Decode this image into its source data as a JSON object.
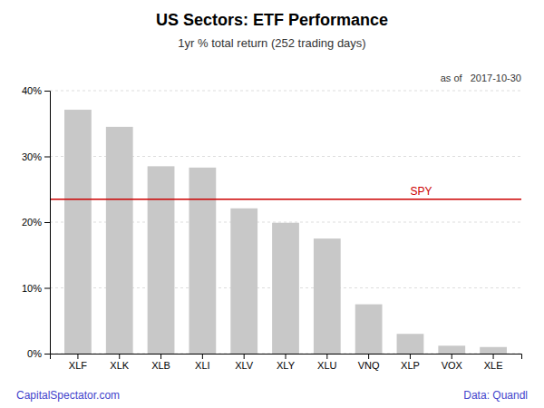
{
  "chart_data": {
    "type": "bar",
    "title": "US Sectors: ETF Performance",
    "subtitle": "1yr % total return (252 trading days)",
    "annotations": [
      "as of   2017-10-30",
      "CapitalSpectator.com",
      "Data: Quandl"
    ],
    "categories": [
      "XLF",
      "XLK",
      "XLB",
      "XLI",
      "XLV",
      "XLY",
      "XLU",
      "VNQ",
      "XLP",
      "VOX",
      "XLE"
    ],
    "values": [
      0.371,
      0.345,
      0.285,
      0.283,
      0.221,
      0.199,
      0.175,
      0.075,
      0.03,
      0.012,
      0.01
    ],
    "color": "#c8c8c8",
    "reference_lines": [
      {
        "label": "SPY",
        "value": 0.235,
        "color": "#cc0000"
      }
    ],
    "ylim": [
      0,
      0.4
    ],
    "yticks": [
      {
        "value": 0.0,
        "label": "0%"
      },
      {
        "value": 0.1,
        "label": "10%"
      },
      {
        "value": 0.2,
        "label": "20%"
      },
      {
        "value": 0.3,
        "label": "30%"
      },
      {
        "value": 0.4,
        "label": "40%"
      }
    ],
    "grid": true
  }
}
